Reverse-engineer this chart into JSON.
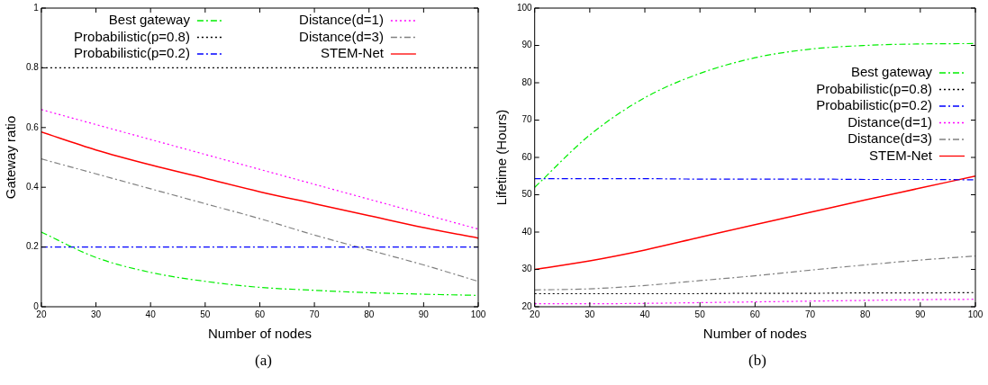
{
  "chart_data": [
    {
      "type": "line",
      "xlabel": "Number of nodes",
      "ylabel": "Gateway ratio",
      "x": [
        20,
        30,
        40,
        50,
        60,
        70,
        80,
        90,
        100
      ],
      "xlim": [
        20,
        100
      ],
      "xticks": [
        20,
        30,
        40,
        50,
        60,
        70,
        80,
        90,
        100
      ],
      "ylim": [
        0,
        1
      ],
      "yticks": [
        0,
        0.2,
        0.4,
        0.6,
        0.8,
        1
      ],
      "legend": "top",
      "grid": false,
      "annotations": [
        "(a)"
      ],
      "series": [
        {
          "name": "Best gateway",
          "color": "#00ee00",
          "line_style": "dashed",
          "values": [
            0.25,
            0.165,
            0.115,
            0.085,
            0.065,
            0.055,
            0.047,
            0.042,
            0.038
          ]
        },
        {
          "name": "Probabilistic(p=0.8)",
          "color": "#000000",
          "line_style": "dotted",
          "values": [
            0.8,
            0.8,
            0.8,
            0.8,
            0.8,
            0.8,
            0.8,
            0.8,
            0.8
          ]
        },
        {
          "name": "Probabilistic(p=0.2)",
          "color": "#0000ff",
          "line_style": "dashed",
          "values": [
            0.2,
            0.2,
            0.2,
            0.2,
            0.2,
            0.2,
            0.2,
            0.2,
            0.2
          ]
        },
        {
          "name": "Distance(d=1)",
          "color": "#ff00ff",
          "line_style": "dotted",
          "values": [
            0.66,
            0.61,
            0.56,
            0.51,
            0.46,
            0.41,
            0.36,
            0.31,
            0.26
          ]
        },
        {
          "name": "Distance(d=3)",
          "color": "#808080",
          "line_style": "dashed",
          "values": [
            0.495,
            0.445,
            0.395,
            0.345,
            0.295,
            0.24,
            0.19,
            0.14,
            0.085
          ]
        },
        {
          "name": "STEM-Net",
          "color": "#ff0000",
          "line_style": "solid",
          "values": [
            0.585,
            0.525,
            0.475,
            0.43,
            0.385,
            0.345,
            0.305,
            0.265,
            0.23
          ]
        }
      ]
    },
    {
      "type": "line",
      "xlabel": "Number of nodes",
      "ylabel": "Lifetime (Hours)",
      "x": [
        20,
        30,
        40,
        50,
        60,
        70,
        80,
        90,
        100
      ],
      "xlim": [
        20,
        100
      ],
      "xticks": [
        20,
        30,
        40,
        50,
        60,
        70,
        80,
        90,
        100
      ],
      "ylim": [
        20,
        100
      ],
      "yticks": [
        20,
        30,
        40,
        50,
        60,
        70,
        80,
        90,
        100
      ],
      "legend": "right",
      "grid": false,
      "annotations": [
        "(b)"
      ],
      "series": [
        {
          "name": "Best gateway",
          "color": "#00ee00",
          "line_style": "dashed",
          "values": [
            52,
            66,
            76,
            82.5,
            86.7,
            89,
            90,
            90.4,
            90.5
          ]
        },
        {
          "name": "Probabilistic(p=0.8)",
          "color": "#000000",
          "line_style": "dotted",
          "values": [
            23.5,
            23.5,
            23.5,
            23.5,
            23.6,
            23.6,
            23.7,
            23.7,
            23.8
          ]
        },
        {
          "name": "Probabilistic(p=0.2)",
          "color": "#0000ff",
          "line_style": "dashed",
          "values": [
            54.3,
            54.3,
            54.3,
            54.2,
            54.2,
            54.2,
            54.1,
            54.1,
            54
          ]
        },
        {
          "name": "Distance(d=1)",
          "color": "#ff00ff",
          "line_style": "dotted",
          "values": [
            20.8,
            20.8,
            20.9,
            21.1,
            21.3,
            21.5,
            21.7,
            21.9,
            22
          ]
        },
        {
          "name": "Distance(d=3)",
          "color": "#808080",
          "line_style": "dashed",
          "values": [
            24.5,
            24.8,
            25.7,
            27,
            28.3,
            29.8,
            31.2,
            32.5,
            33.6
          ]
        },
        {
          "name": "STEM-Net",
          "color": "#ff0000",
          "line_style": "solid",
          "values": [
            30,
            32.3,
            35.2,
            38.6,
            42,
            45.3,
            48.6,
            51.8,
            55
          ]
        }
      ]
    }
  ]
}
